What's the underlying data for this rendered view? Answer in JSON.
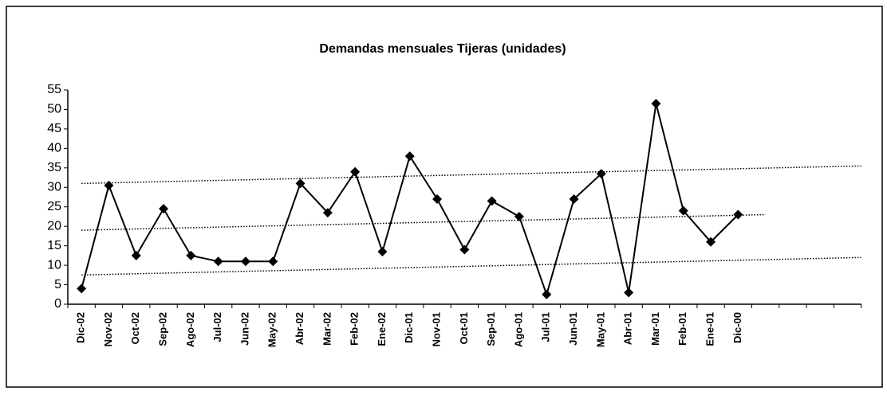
{
  "chart_data": {
    "type": "line",
    "title": "Demandas mensuales Tijeras (unidades)",
    "categories": [
      "Dic-02",
      "Nov-02",
      "Oct-02",
      "Sep-02",
      "Ago-02",
      "Jul-02",
      "Jun-02",
      "May-02",
      "Abr-02",
      "Mar-02",
      "Feb-02",
      "Ene-02",
      "Dic-01",
      "Nov-01",
      "Oct-01",
      "Sep-01",
      "Ago-01",
      "Jul-01",
      "Jun-01",
      "May-01",
      "Abr-01",
      "Mar-01",
      "Feb-01",
      "Ene-01",
      "Dic-00",
      null,
      null,
      null,
      null
    ],
    "series": [
      {
        "color": "#000000",
        "values": [
          4,
          30.5,
          12.5,
          24.5,
          12.5,
          11,
          11,
          11,
          31,
          23.5,
          34,
          13.5,
          38,
          27,
          14,
          26.5,
          22.5,
          2.5,
          27,
          33.5,
          3,
          51.5,
          24,
          16,
          23,
          null,
          null,
          null,
          null
        ]
      }
    ],
    "trend_lines": [
      {
        "x": [
          0,
          29
        ],
        "values": [
          31,
          35.5
        ]
      },
      {
        "x": [
          0,
          25
        ],
        "values": [
          19,
          23
        ]
      },
      {
        "x": [
          0,
          29
        ],
        "values": [
          7.5,
          12
        ]
      }
    ],
    "ylim": [
      0,
      55
    ],
    "yticks": [
      0,
      5,
      10,
      15,
      20,
      25,
      30,
      35,
      40,
      45,
      50,
      55
    ],
    "grid": false
  }
}
